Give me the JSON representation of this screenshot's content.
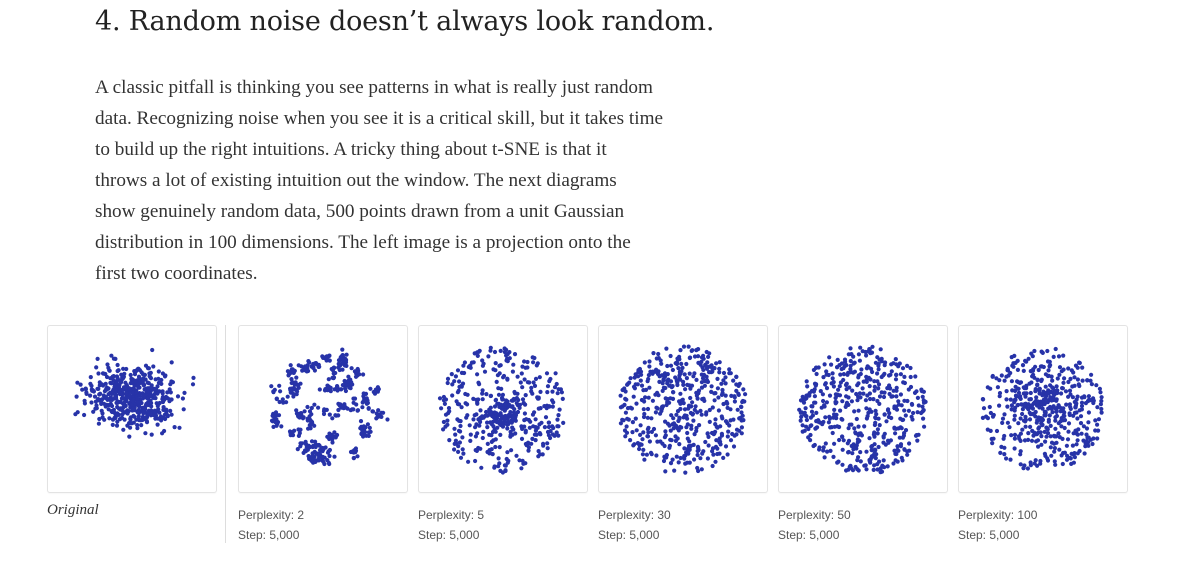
{
  "section": {
    "heading": "4. Random noise doesn’t always look random.",
    "paragraph_lines": [
      "A classic pitfall is thinking you see patterns in what is really just random",
      "data. Recognizing noise when you see it is a critical skill, but it takes time",
      "to build up the right intuitions. A tricky thing about t-SNE is that it",
      "throws a lot of existing intuition out the window. The next diagrams",
      "show genuinely random data, 500 points drawn from a unit Gaussian",
      "distribution in 100 dimensions. The left image is a projection onto the",
      "first two coordinates."
    ]
  },
  "colors": {
    "point": "#2733a8"
  },
  "figures": [
    {
      "caption": "Original",
      "kind": "original"
    },
    {
      "perplexity_label": "Perplexity: 2",
      "step_label": "Step: 5,000",
      "kind": "clumpy"
    },
    {
      "perplexity_label": "Perplexity: 5",
      "step_label": "Step: 5,000",
      "kind": "mid"
    },
    {
      "perplexity_label": "Perplexity: 30",
      "step_label": "Step: 5,000",
      "kind": "disc"
    },
    {
      "perplexity_label": "Perplexity: 50",
      "step_label": "Step: 5,000",
      "kind": "disc"
    },
    {
      "perplexity_label": "Perplexity: 100",
      "step_label": "Step: 5,000",
      "kind": "dense"
    }
  ]
}
